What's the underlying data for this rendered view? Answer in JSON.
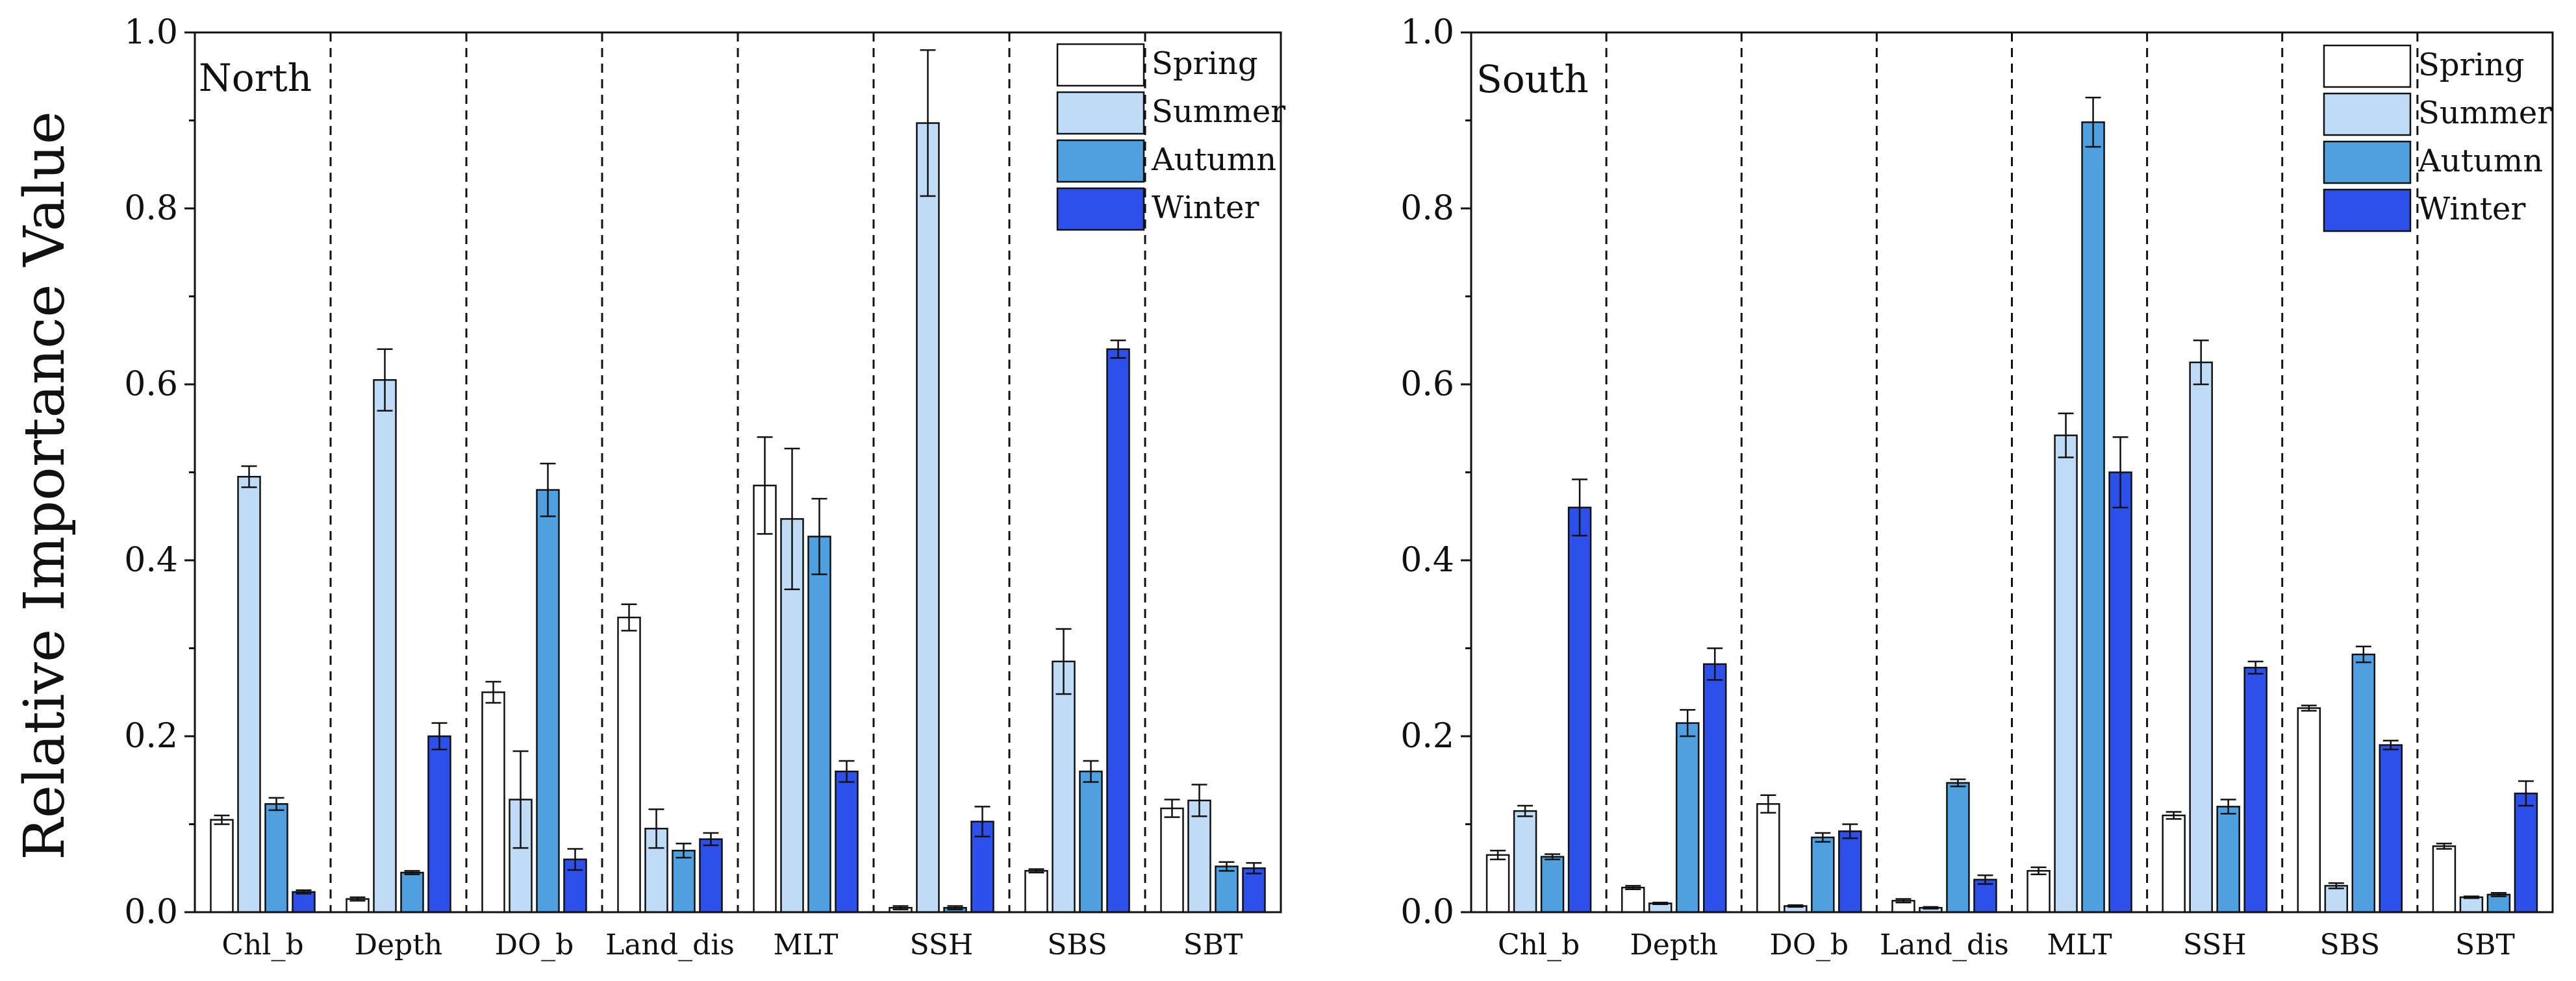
{
  "figure": {
    "ylabel": "Relative Importance Value"
  },
  "legend": {
    "labels": [
      "Spring",
      "Summer",
      "Autumn",
      "Winter"
    ]
  },
  "colors": {
    "Spring": "#ffffff",
    "Summer": "#bfdbf5",
    "Autumn": "#4ea0e0",
    "Winter": "#2e50ea",
    "outline": "#111111"
  },
  "chart_data": [
    {
      "type": "bar",
      "title": "North",
      "xlabel": "",
      "ylabel": "Relative Importance Value",
      "ylim": [
        0,
        1.0
      ],
      "yticks": [
        "0.0",
        "0.2",
        "0.4",
        "0.6",
        "0.8",
        "1.0"
      ],
      "categories": [
        "Chl_b",
        "Depth",
        "DO_b",
        "Land_dis",
        "MLT",
        "SSH",
        "SBS",
        "SBT"
      ],
      "legend_position": "top-right",
      "separators": "dashed vertical lines between categories",
      "series": [
        {
          "name": "Spring",
          "values": [
            0.105,
            0.015,
            0.25,
            0.335,
            0.485,
            0.005,
            0.047,
            0.118
          ],
          "errors": [
            0.005,
            0.002,
            0.012,
            0.015,
            0.055,
            0.002,
            0.002,
            0.01
          ]
        },
        {
          "name": "Summer",
          "values": [
            0.495,
            0.605,
            0.128,
            0.095,
            0.447,
            0.897,
            0.285,
            0.127
          ],
          "errors": [
            0.012,
            0.035,
            0.055,
            0.022,
            0.08,
            0.083,
            0.037,
            0.018
          ]
        },
        {
          "name": "Autumn",
          "values": [
            0.123,
            0.045,
            0.48,
            0.07,
            0.427,
            0.005,
            0.16,
            0.052
          ],
          "errors": [
            0.007,
            0.002,
            0.03,
            0.008,
            0.043,
            0.002,
            0.012,
            0.005
          ]
        },
        {
          "name": "Winter",
          "values": [
            0.023,
            0.2,
            0.06,
            0.083,
            0.16,
            0.103,
            0.64,
            0.05
          ],
          "errors": [
            0.002,
            0.015,
            0.012,
            0.007,
            0.012,
            0.017,
            0.01,
            0.006
          ]
        }
      ]
    },
    {
      "type": "bar",
      "title": "South",
      "xlabel": "",
      "ylabel": "",
      "ylim": [
        0,
        1.0
      ],
      "yticks": [
        "0.0",
        "0.2",
        "0.4",
        "0.6",
        "0.8",
        "1.0"
      ],
      "categories": [
        "Chl_b",
        "Depth",
        "DO_b",
        "Land_dis",
        "MLT",
        "SSH",
        "SBS",
        "SBT"
      ],
      "legend_position": "top-right",
      "separators": "dashed vertical lines between categories",
      "series": [
        {
          "name": "Spring",
          "values": [
            0.065,
            0.028,
            0.123,
            0.013,
            0.047,
            0.11,
            0.232,
            0.075
          ],
          "errors": [
            0.005,
            0.002,
            0.01,
            0.002,
            0.004,
            0.004,
            0.003,
            0.003
          ]
        },
        {
          "name": "Summer",
          "values": [
            0.115,
            0.01,
            0.007,
            0.005,
            0.542,
            0.625,
            0.03,
            0.017
          ],
          "errors": [
            0.006,
            0.001,
            0.001,
            0.001,
            0.025,
            0.025,
            0.003,
            0.001
          ]
        },
        {
          "name": "Autumn",
          "values": [
            0.063,
            0.215,
            0.085,
            0.147,
            0.898,
            0.12,
            0.293,
            0.02
          ],
          "errors": [
            0.003,
            0.015,
            0.005,
            0.004,
            0.028,
            0.008,
            0.009,
            0.002
          ]
        },
        {
          "name": "Winter",
          "values": [
            0.46,
            0.282,
            0.092,
            0.037,
            0.5,
            0.278,
            0.19,
            0.135
          ],
          "errors": [
            0.032,
            0.018,
            0.008,
            0.005,
            0.04,
            0.007,
            0.005,
            0.014
          ]
        }
      ]
    }
  ]
}
